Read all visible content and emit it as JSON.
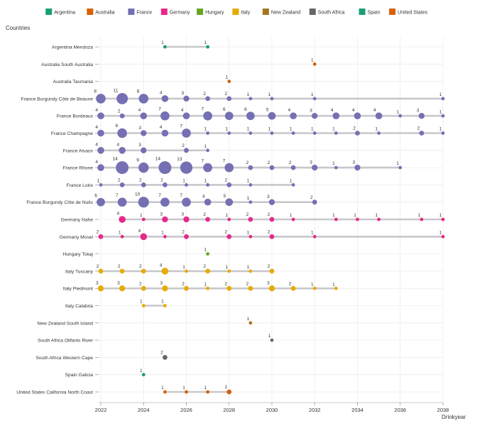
{
  "chart_data": {
    "type": "scatter",
    "subtype": "dot-plot",
    "ylabel": "Countries",
    "xlabel": "Drinkyear",
    "xlim": [
      2022,
      2038
    ],
    "x_ticks": [
      2022,
      2024,
      2026,
      2028,
      2030,
      2032,
      2034,
      2036,
      2038
    ],
    "grid": true,
    "legend": [
      {
        "name": "Argentina",
        "color": "#1b9e77"
      },
      {
        "name": "Australia",
        "color": "#d95f02"
      },
      {
        "name": "France",
        "color": "#7570b3"
      },
      {
        "name": "Germany",
        "color": "#e7298a"
      },
      {
        "name": "Hungary",
        "color": "#66a61e"
      },
      {
        "name": "Italy",
        "color": "#e6ab02"
      },
      {
        "name": "New Zealand",
        "color": "#a6761d"
      },
      {
        "name": "South Africa",
        "color": "#666666"
      },
      {
        "name": "Spain",
        "color": "#1b9e77"
      },
      {
        "name": "United States",
        "color": "#d95f02"
      }
    ],
    "rows": [
      {
        "label": "Argentina Mendoza",
        "country": "Argentina",
        "points": [
          [
            2025,
            1
          ],
          [
            2027,
            1
          ]
        ]
      },
      {
        "label": "Australia South Australia",
        "country": "Australia",
        "points": [
          [
            2032,
            1
          ]
        ]
      },
      {
        "label": "Australia Tasmania",
        "country": "Australia",
        "points": [
          [
            2028,
            1
          ]
        ]
      },
      {
        "label": "France Burgundy Côte de Beaune",
        "country": "France",
        "points": [
          [
            2022,
            8
          ],
          [
            2023,
            11
          ],
          [
            2024,
            8
          ],
          [
            2025,
            4
          ],
          [
            2026,
            3
          ],
          [
            2027,
            2
          ],
          [
            2028,
            2
          ],
          [
            2029,
            1
          ],
          [
            2030,
            1
          ],
          [
            2032,
            1
          ],
          [
            2038,
            1
          ]
        ]
      },
      {
        "label": "France Bordeaux",
        "country": "France",
        "points": [
          [
            2022,
            4
          ],
          [
            2023,
            2
          ],
          [
            2024,
            4
          ],
          [
            2025,
            7
          ],
          [
            2026,
            4
          ],
          [
            2027,
            7
          ],
          [
            2028,
            6
          ],
          [
            2029,
            6
          ],
          [
            2030,
            5
          ],
          [
            2031,
            4
          ],
          [
            2032,
            3
          ],
          [
            2033,
            4
          ],
          [
            2034,
            4
          ],
          [
            2035,
            4
          ],
          [
            2036,
            1
          ],
          [
            2037,
            3
          ],
          [
            2038,
            1
          ]
        ]
      },
      {
        "label": "France Champagne",
        "country": "France",
        "points": [
          [
            2022,
            4
          ],
          [
            2023,
            8
          ],
          [
            2024,
            3
          ],
          [
            2025,
            4
          ],
          [
            2026,
            7
          ],
          [
            2027,
            1
          ],
          [
            2028,
            1
          ],
          [
            2029,
            1
          ],
          [
            2030,
            1
          ],
          [
            2031,
            1
          ],
          [
            2032,
            1
          ],
          [
            2033,
            1
          ],
          [
            2034,
            2
          ],
          [
            2035,
            1
          ],
          [
            2037,
            2
          ],
          [
            2038,
            1
          ]
        ]
      },
      {
        "label": "France Alsace",
        "country": "France",
        "points": [
          [
            2022,
            4
          ],
          [
            2023,
            4
          ],
          [
            2024,
            3
          ],
          [
            2026,
            2
          ],
          [
            2027,
            1
          ]
        ]
      },
      {
        "label": "France Rhone",
        "country": "France",
        "points": [
          [
            2022,
            4
          ],
          [
            2023,
            14
          ],
          [
            2024,
            9
          ],
          [
            2025,
            14
          ],
          [
            2026,
            13
          ],
          [
            2027,
            7
          ],
          [
            2028,
            7
          ],
          [
            2029,
            2
          ],
          [
            2030,
            2
          ],
          [
            2031,
            2
          ],
          [
            2032,
            3
          ],
          [
            2033,
            1
          ],
          [
            2034,
            3
          ],
          [
            2036,
            1
          ]
        ]
      },
      {
        "label": "France Loire",
        "country": "France",
        "points": [
          [
            2022,
            1
          ],
          [
            2023,
            2
          ],
          [
            2024,
            2
          ],
          [
            2025,
            2
          ],
          [
            2026,
            1
          ],
          [
            2027,
            1
          ],
          [
            2028,
            2
          ],
          [
            2029,
            1
          ],
          [
            2031,
            1
          ]
        ]
      },
      {
        "label": "France Burgundy Côte de Nuits",
        "country": "France",
        "points": [
          [
            2022,
            6
          ],
          [
            2023,
            7
          ],
          [
            2024,
            10
          ],
          [
            2025,
            7
          ],
          [
            2026,
            7
          ],
          [
            2027,
            4
          ],
          [
            2028,
            5
          ],
          [
            2029,
            1
          ],
          [
            2030,
            3
          ],
          [
            2032,
            2
          ]
        ]
      },
      {
        "label": "Germany Nahe",
        "country": "Germany",
        "points": [
          [
            2023,
            4
          ],
          [
            2024,
            1
          ],
          [
            2025,
            3
          ],
          [
            2026,
            3
          ],
          [
            2027,
            2
          ],
          [
            2028,
            1
          ],
          [
            2029,
            2
          ],
          [
            2030,
            2
          ],
          [
            2031,
            1
          ],
          [
            2033,
            1
          ],
          [
            2034,
            1
          ],
          [
            2035,
            1
          ],
          [
            2037,
            1
          ],
          [
            2038,
            1
          ]
        ]
      },
      {
        "label": "Germany Mosel",
        "country": "Germany",
        "points": [
          [
            2022,
            2
          ],
          [
            2023,
            1
          ],
          [
            2024,
            4
          ],
          [
            2025,
            1
          ],
          [
            2026,
            2
          ],
          [
            2028,
            2
          ],
          [
            2029,
            1
          ],
          [
            2030,
            2
          ],
          [
            2032,
            1
          ],
          [
            2038,
            1
          ]
        ]
      },
      {
        "label": "Hungary Tokaj",
        "country": "Hungary",
        "points": [
          [
            2027,
            1
          ]
        ]
      },
      {
        "label": "Italy Tuscany",
        "country": "Italy",
        "points": [
          [
            2022,
            2
          ],
          [
            2023,
            2
          ],
          [
            2024,
            2
          ],
          [
            2025,
            4
          ],
          [
            2026,
            1
          ],
          [
            2027,
            2
          ],
          [
            2028,
            1
          ],
          [
            2029,
            1
          ],
          [
            2030,
            2
          ]
        ]
      },
      {
        "label": "Italy Piedmont",
        "country": "Italy",
        "points": [
          [
            2022,
            3
          ],
          [
            2023,
            3
          ],
          [
            2024,
            2
          ],
          [
            2025,
            3
          ],
          [
            2026,
            2
          ],
          [
            2027,
            1
          ],
          [
            2028,
            2
          ],
          [
            2029,
            2
          ],
          [
            2030,
            3
          ],
          [
            2031,
            2
          ],
          [
            2032,
            1
          ],
          [
            2033,
            1
          ]
        ]
      },
      {
        "label": "Italy Calabria",
        "country": "Italy",
        "points": [
          [
            2024,
            1
          ],
          [
            2025,
            1
          ]
        ]
      },
      {
        "label": "New Zealand South Island",
        "country": "New Zealand",
        "points": [
          [
            2029,
            1
          ]
        ]
      },
      {
        "label": "South Africa Olifants River",
        "country": "South Africa",
        "points": [
          [
            2030,
            1
          ]
        ]
      },
      {
        "label": "South Africa Western Cape",
        "country": "South Africa",
        "points": [
          [
            2025,
            2
          ]
        ]
      },
      {
        "label": "Spain Galicia",
        "country": "Spain",
        "points": [
          [
            2024,
            1
          ]
        ]
      },
      {
        "label": "United States California North Coast",
        "country": "United States",
        "points": [
          [
            2025,
            1
          ],
          [
            2026,
            1
          ],
          [
            2027,
            1
          ],
          [
            2028,
            2
          ]
        ]
      }
    ]
  }
}
